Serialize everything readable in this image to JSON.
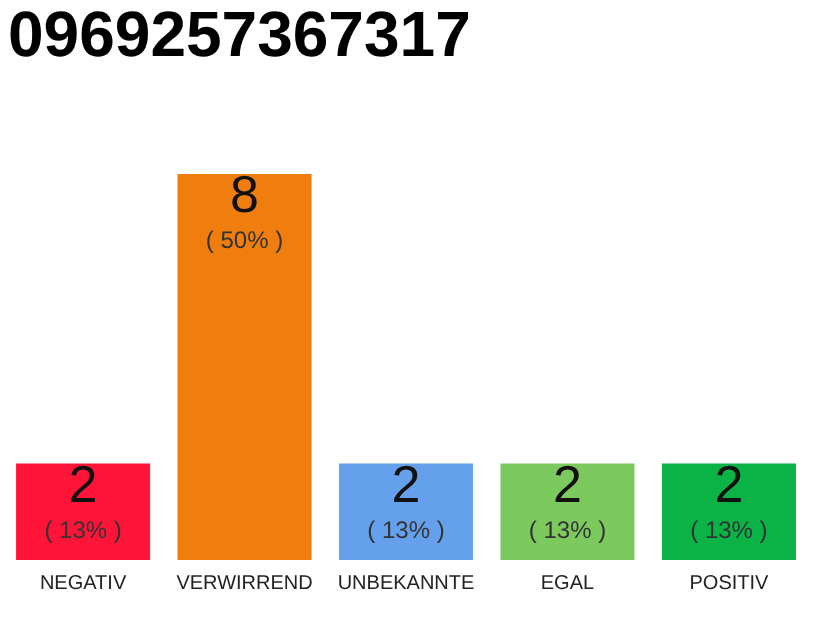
{
  "chart_data": {
    "type": "bar",
    "title": "0969257367317",
    "categories": [
      "NEGATIV",
      "VERWIRREND",
      "UNBEKANNTE",
      "EGAL",
      "POSITIV"
    ],
    "values": [
      2,
      8,
      2,
      2,
      2
    ],
    "colors": [
      "#ff1439",
      "#f07e0e",
      "#64a0ec",
      "#7cc95e",
      "#0bb245"
    ],
    "ylim": [
      0,
      8
    ],
    "tick_labels": "x",
    "data_labels": true,
    "grid": false,
    "annotations": [
      {
        "text": "( 13% )",
        "x": "NEGATIV",
        "y": 2
      },
      {
        "text": "( 50% )",
        "x": "VERWIRREND",
        "y": 8
      },
      {
        "text": "( 13% )",
        "x": "UNBEKANNTE",
        "y": 2
      },
      {
        "text": "( 13% )",
        "x": "EGAL",
        "y": 2
      },
      {
        "text": "( 13% )",
        "x": "POSITIV",
        "y": 2
      }
    ]
  }
}
